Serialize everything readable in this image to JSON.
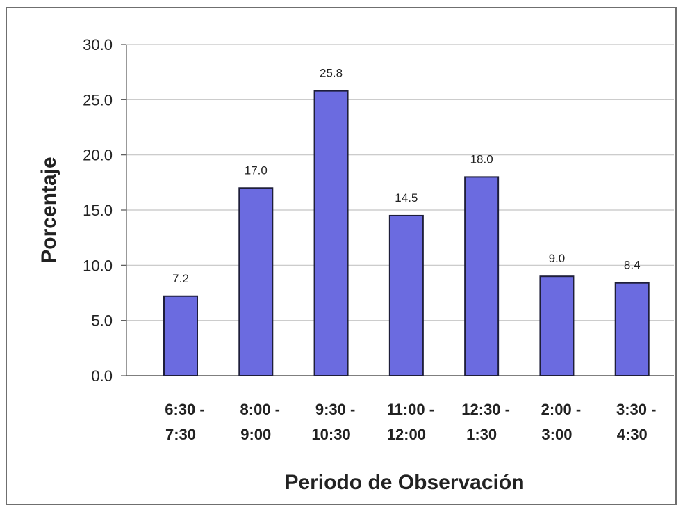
{
  "chart_data": {
    "type": "bar",
    "title": "",
    "xlabel": "Periodo de Observación",
    "ylabel": "Porcentaje",
    "ylim": [
      0,
      30
    ],
    "yticks": [
      "0.0",
      "5.0",
      "10.0",
      "15.0",
      "20.0",
      "25.0",
      "30.0"
    ],
    "grid": true,
    "legend": "none",
    "bar_color": "#6b6be0",
    "categories": [
      [
        "6:30 -",
        "7:30"
      ],
      [
        "8:00 -",
        "9:00"
      ],
      [
        "9:30 -",
        "10:30"
      ],
      [
        "11:00 -",
        "12:00"
      ],
      [
        "12:30 -",
        "1:30"
      ],
      [
        "2:00 -",
        "3:00"
      ],
      [
        "3:30 -",
        "4:30"
      ]
    ],
    "values": [
      7.2,
      17.0,
      25.8,
      14.5,
      18.0,
      9.0,
      8.4
    ],
    "data_labels": [
      "7.2",
      "17.0",
      "25.8",
      "14.5",
      "18.0",
      "9.0",
      "8.4"
    ]
  }
}
